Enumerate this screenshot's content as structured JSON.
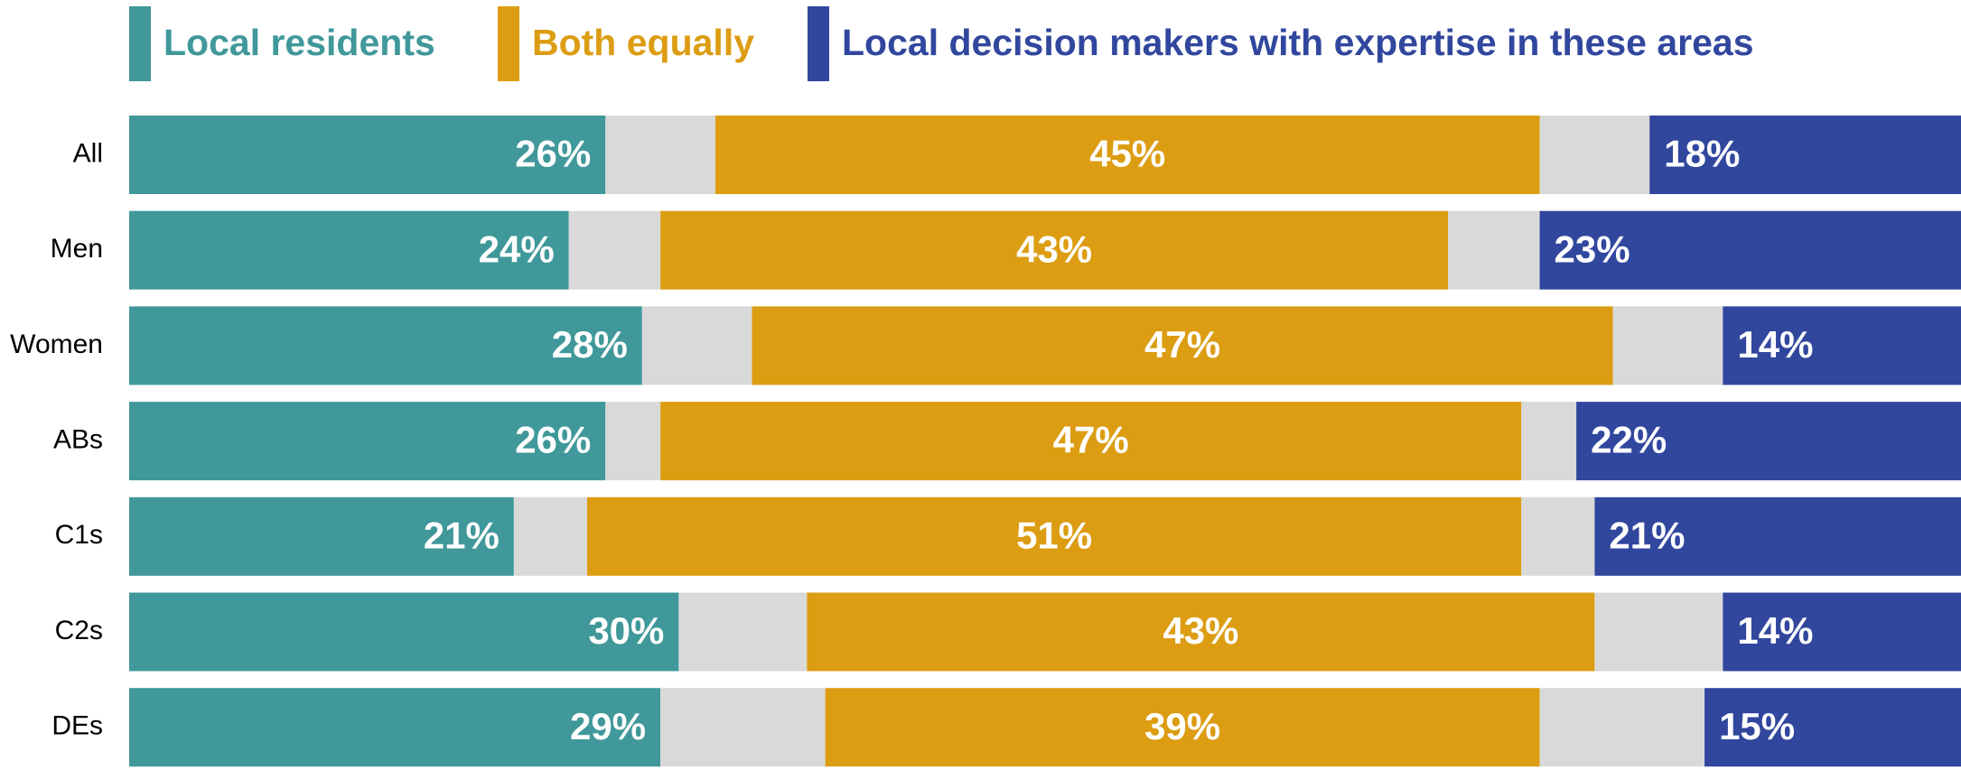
{
  "chart_data": {
    "type": "stacked-bar",
    "categories": [
      "All",
      "Men",
      "Women",
      "ABs",
      "C1s",
      "C2s",
      "DEs"
    ],
    "series": [
      {
        "name": "Local residents",
        "color": "#40989a",
        "values": [
          26,
          24,
          28,
          26,
          21,
          30,
          29
        ],
        "value_labels": [
          "26%",
          "24%",
          "28%",
          "26%",
          "21%",
          "30%",
          "29%"
        ]
      },
      {
        "color": "#d9d9d9",
        "values": [
          6,
          5,
          6,
          3,
          4,
          7,
          9
        ]
      },
      {
        "name": "Both equally",
        "color": "#dc9d13",
        "values": [
          45,
          43,
          47,
          47,
          51,
          43,
          39
        ],
        "value_labels": [
          "45%",
          "43%",
          "47%",
          "47%",
          "51%",
          "43%",
          "39%"
        ]
      },
      {
        "color": "#d9d9d9",
        "values": [
          6,
          5,
          6,
          3,
          4,
          7,
          9
        ]
      },
      {
        "name": "Local decision makers with expertise in these areas",
        "color": "#31479e",
        "values": [
          18,
          23,
          14,
          22,
          21,
          14,
          15
        ],
        "value_labels": [
          "18%",
          "23%",
          "14%",
          "22%",
          "21%",
          "14%",
          "15%"
        ]
      }
    ],
    "xlim": [
      0,
      100
    ]
  }
}
